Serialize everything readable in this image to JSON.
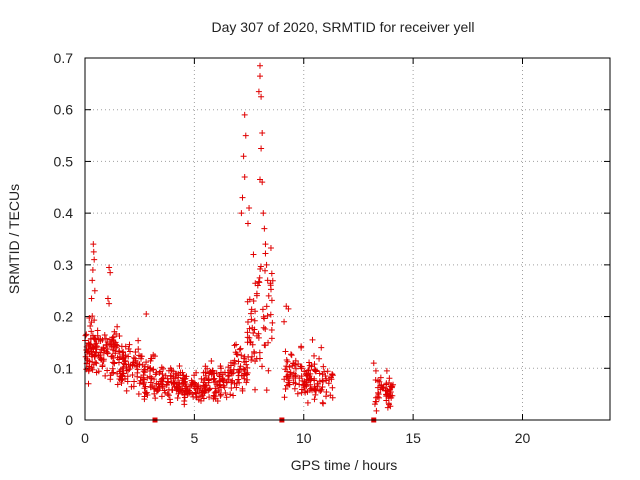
{
  "chart_data": {
    "type": "scatter",
    "title": "Day 307 of 2020, SRMTID for receiver yell",
    "xlabel": "GPS time / hours",
    "ylabel": "SRMTID / TECUs",
    "xlim": [
      0,
      24
    ],
    "ylim": [
      0,
      0.7
    ],
    "xticks": [
      0,
      5,
      10,
      15,
      20
    ],
    "yticks": [
      0,
      0.1,
      0.2,
      0.3,
      0.4,
      0.5,
      0.6,
      0.7
    ],
    "xtick_labels": [
      "0",
      "5",
      "10",
      "15",
      "20"
    ],
    "ytick_labels": [
      "0",
      "0.1",
      "0.2",
      "0.3",
      "0.4",
      "0.5",
      "0.6",
      "0.7"
    ],
    "grid": true,
    "marker": "+",
    "color": "#e00000",
    "segments": [
      {
        "x_start": 0.0,
        "x_end": 0.6,
        "base": 0.14,
        "spread": 0.04,
        "count": 70
      },
      {
        "x_start": 0.6,
        "x_end": 1.5,
        "base": 0.13,
        "spread": 0.035,
        "count": 70
      },
      {
        "x_start": 1.5,
        "x_end": 2.6,
        "base": 0.11,
        "spread": 0.035,
        "count": 80
      },
      {
        "x_start": 2.6,
        "x_end": 3.2,
        "base": 0.085,
        "spread": 0.03,
        "count": 45
      },
      {
        "x_start": 3.2,
        "x_end": 4.5,
        "base": 0.075,
        "spread": 0.025,
        "count": 90
      },
      {
        "x_start": 4.5,
        "x_end": 5.5,
        "base": 0.06,
        "spread": 0.02,
        "count": 70
      },
      {
        "x_start": 5.5,
        "x_end": 6.8,
        "base": 0.075,
        "spread": 0.025,
        "count": 90
      },
      {
        "x_start": 6.8,
        "x_end": 7.4,
        "base": 0.1,
        "spread": 0.035,
        "count": 40
      },
      {
        "x_start": 7.4,
        "x_end": 8.6,
        "base": 0.2,
        "spread": 0.09,
        "count": 70
      },
      {
        "x_start": 9.1,
        "x_end": 10.0,
        "base": 0.09,
        "spread": 0.035,
        "count": 55
      },
      {
        "x_start": 10.0,
        "x_end": 11.4,
        "base": 0.075,
        "spread": 0.03,
        "count": 85
      },
      {
        "x_start": 13.2,
        "x_end": 14.1,
        "base": 0.05,
        "spread": 0.025,
        "count": 55
      }
    ],
    "notable_points": [
      {
        "x": 0.38,
        "y": 0.34
      },
      {
        "x": 0.4,
        "y": 0.325
      },
      {
        "x": 0.42,
        "y": 0.31
      },
      {
        "x": 0.36,
        "y": 0.29
      },
      {
        "x": 0.33,
        "y": 0.27
      },
      {
        "x": 0.45,
        "y": 0.25
      },
      {
        "x": 0.3,
        "y": 0.235
      },
      {
        "x": 1.1,
        "y": 0.295
      },
      {
        "x": 1.15,
        "y": 0.285
      },
      {
        "x": 1.05,
        "y": 0.235
      },
      {
        "x": 1.1,
        "y": 0.225
      },
      {
        "x": 2.8,
        "y": 0.205
      },
      {
        "x": 7.9,
        "y": 0.26
      },
      {
        "x": 7.3,
        "y": 0.59
      },
      {
        "x": 7.35,
        "y": 0.55
      },
      {
        "x": 7.25,
        "y": 0.51
      },
      {
        "x": 7.3,
        "y": 0.47
      },
      {
        "x": 7.2,
        "y": 0.43
      },
      {
        "x": 7.5,
        "y": 0.41
      },
      {
        "x": 7.15,
        "y": 0.4
      },
      {
        "x": 7.45,
        "y": 0.38
      },
      {
        "x": 7.7,
        "y": 0.32
      },
      {
        "x": 8.0,
        "y": 0.685
      },
      {
        "x": 8.0,
        "y": 0.665
      },
      {
        "x": 7.95,
        "y": 0.635
      },
      {
        "x": 8.05,
        "y": 0.625
      },
      {
        "x": 8.1,
        "y": 0.555
      },
      {
        "x": 8.05,
        "y": 0.525
      },
      {
        "x": 8.0,
        "y": 0.465
      },
      {
        "x": 8.1,
        "y": 0.46
      },
      {
        "x": 8.15,
        "y": 0.4
      },
      {
        "x": 8.2,
        "y": 0.37
      },
      {
        "x": 8.25,
        "y": 0.34
      },
      {
        "x": 8.3,
        "y": 0.3
      },
      {
        "x": 8.35,
        "y": 0.27
      },
      {
        "x": 8.4,
        "y": 0.24
      },
      {
        "x": 9.2,
        "y": 0.22
      },
      {
        "x": 9.3,
        "y": 0.215
      },
      {
        "x": 9.1,
        "y": 0.19
      },
      {
        "x": 10.4,
        "y": 0.155
      },
      {
        "x": 10.8,
        "y": 0.14
      },
      {
        "x": 13.2,
        "y": 0.11
      },
      {
        "x": 13.3,
        "y": 0.095
      },
      {
        "x": 13.8,
        "y": 0.095
      }
    ],
    "gap_markers": [
      3.2,
      9.0,
      13.2
    ]
  }
}
